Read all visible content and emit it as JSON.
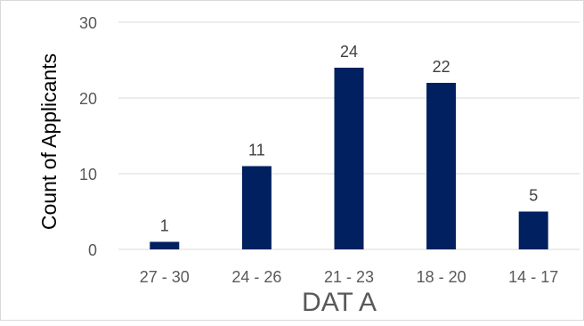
{
  "chart_data": {
    "type": "bar",
    "categories": [
      "27 - 30",
      "24 - 26",
      "21 - 23",
      "18 - 20",
      "14 - 17"
    ],
    "values": [
      1,
      11,
      24,
      22,
      5
    ],
    "title": "",
    "xlabel": "DAT A",
    "ylabel": "Count of Applicants",
    "ylim": [
      0,
      30
    ],
    "yticks": [
      0,
      10,
      20,
      30
    ],
    "grid": true,
    "data_labels": true,
    "bar_color": "#002060",
    "gridline_color": "#d9d9d9",
    "text_color": "#595959"
  }
}
